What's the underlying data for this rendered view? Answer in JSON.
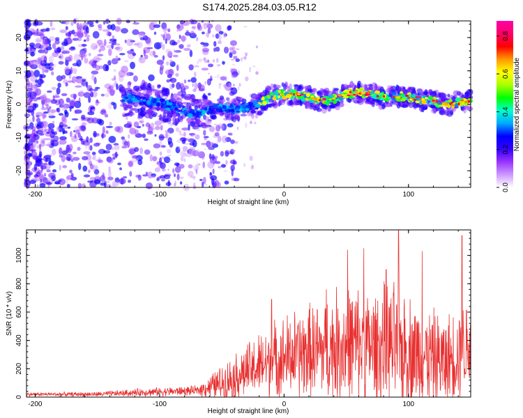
{
  "title": "S174.2025.284.03.05.R12",
  "chart_data": [
    {
      "type": "heatmap",
      "name": "spectrogram",
      "xlabel": "Height of straight line (km)",
      "ylabel": "Frequency (Hz)",
      "xlim": [
        -207,
        150
      ],
      "ylim": [
        -25,
        25
      ],
      "xticks": [
        -200,
        -100,
        0,
        100
      ],
      "yticks": [
        -20,
        -10,
        0,
        10,
        20
      ],
      "colorbar": {
        "label": "Normalized spectral amplitude",
        "range": [
          0.0,
          0.88
        ],
        "ticks": [
          "0.0",
          "0.2",
          "0.4",
          "0.6",
          "0.8"
        ],
        "tick_values": [
          0.0,
          0.2,
          0.4,
          0.6,
          0.8
        ],
        "colors": [
          "#ffffff",
          "#cc99ff",
          "#9933ff",
          "#3300ff",
          "#0000ff",
          "#00aaff",
          "#00ffcc",
          "#00ff00",
          "#aaff00",
          "#ffff00",
          "#ff9900",
          "#ff0000",
          "#ff0066",
          "#ff00aa"
        ]
      },
      "ridge": [
        {
          "x": -120,
          "f": 1.5
        },
        {
          "x": -100,
          "f": 0.5
        },
        {
          "x": -85,
          "f": -1.5
        },
        {
          "x": -70,
          "f": -3
        },
        {
          "x": -60,
          "f": -2
        },
        {
          "x": -50,
          "f": -1
        },
        {
          "x": -40,
          "f": -1.5
        },
        {
          "x": -30,
          "f": -1
        },
        {
          "x": -20,
          "f": 0
        },
        {
          "x": -10,
          "f": 2.5
        },
        {
          "x": 0,
          "f": 3
        },
        {
          "x": 10,
          "f": 3
        },
        {
          "x": 20,
          "f": 2
        },
        {
          "x": 30,
          "f": 1
        },
        {
          "x": 40,
          "f": 1.5
        },
        {
          "x": 50,
          "f": 3
        },
        {
          "x": 60,
          "f": 3.5
        },
        {
          "x": 70,
          "f": 3
        },
        {
          "x": 80,
          "f": 2
        },
        {
          "x": 90,
          "f": 2.5
        },
        {
          "x": 100,
          "f": 2
        },
        {
          "x": 110,
          "f": 1.5
        },
        {
          "x": 120,
          "f": 1
        },
        {
          "x": 130,
          "f": 0
        },
        {
          "x": 140,
          "f": 0.5
        },
        {
          "x": 150,
          "f": 1
        }
      ]
    },
    {
      "type": "line",
      "name": "snr",
      "xlabel": "Height of straight line (km)",
      "ylabel": "SNR (10 * v/v)",
      "xlim": [
        -207,
        150
      ],
      "ylim": [
        0,
        1180
      ],
      "xticks": [
        -200,
        -100,
        0,
        100
      ],
      "yticks": [
        0,
        200,
        400,
        600,
        800,
        1000
      ],
      "color": "#e83030",
      "envelope": [
        {
          "x": -207,
          "base": 20,
          "amp": 15
        },
        {
          "x": -150,
          "base": 20,
          "amp": 20
        },
        {
          "x": -110,
          "base": 35,
          "amp": 35
        },
        {
          "x": -70,
          "base": 45,
          "amp": 40
        },
        {
          "x": -50,
          "base": 100,
          "amp": 150
        },
        {
          "x": -30,
          "base": 180,
          "amp": 230
        },
        {
          "x": -10,
          "base": 250,
          "amp": 320
        },
        {
          "x": 10,
          "base": 300,
          "amp": 380
        },
        {
          "x": 30,
          "base": 330,
          "amp": 420
        },
        {
          "x": 50,
          "base": 370,
          "amp": 520
        },
        {
          "x": 70,
          "base": 350,
          "amp": 480
        },
        {
          "x": 90,
          "base": 350,
          "amp": 540
        },
        {
          "x": 110,
          "base": 300,
          "amp": 420
        },
        {
          "x": 130,
          "base": 250,
          "amp": 380
        },
        {
          "x": 150,
          "base": 380,
          "amp": 420
        }
      ],
      "peaks": [
        {
          "x": 51,
          "y": 1040
        },
        {
          "x": 64,
          "y": 1050
        },
        {
          "x": 92,
          "y": 1180
        },
        {
          "x": 111,
          "y": 1030
        },
        {
          "x": 143,
          "y": 1140
        },
        {
          "x": 34,
          "y": 760
        },
        {
          "x": 82,
          "y": 900
        },
        {
          "x": -10,
          "y": 690
        }
      ]
    }
  ]
}
